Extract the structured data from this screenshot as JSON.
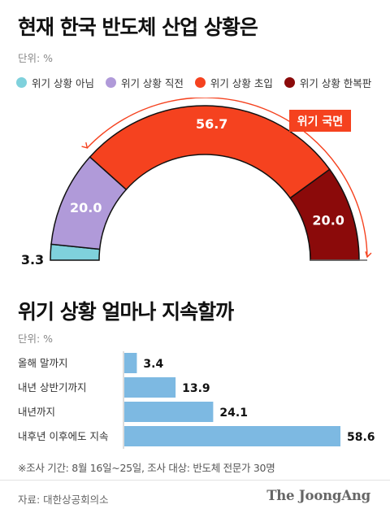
{
  "chart1": {
    "title": "현재 한국 반도체 산업 상황은",
    "unit": "단위: %",
    "legend": [
      {
        "label": "위기 상황 아님",
        "color": "#7fd1dc"
      },
      {
        "label": "위기 상황 직전",
        "color": "#b09ad9"
      },
      {
        "label": "위기 상황 초입",
        "color": "#f5421f"
      },
      {
        "label": "위기 상황 한복판",
        "color": "#8b0a0a"
      }
    ],
    "annotation": "위기 국면",
    "annotation_color": "#f5421f"
  },
  "chart2": {
    "title": "위기 상황 얼마나 지속할까",
    "unit": "단위: %",
    "bar_color": "#7db9e2"
  },
  "chart_data": [
    {
      "type": "pie",
      "variant": "semicircle-gauge",
      "title": "현재 한국 반도체 산업 상황은",
      "unit": "%",
      "slices": [
        {
          "label": "위기 상황 아님",
          "value": 3.3
        },
        {
          "label": "위기 상황 직전",
          "value": 20.0
        },
        {
          "label": "위기 상황 초입",
          "value": 56.7
        },
        {
          "label": "위기 상황 한복판",
          "value": 20.0
        }
      ],
      "value_labels": [
        "3.3",
        "20.0",
        "56.7",
        "20.0"
      ]
    },
    {
      "type": "bar",
      "orientation": "horizontal",
      "title": "위기 상황 얼마나 지속할까",
      "unit": "%",
      "categories": [
        "올해 말까지",
        "내년 상반기까지",
        "내년까지",
        "내후년 이후에도 지속"
      ],
      "values": [
        3.4,
        13.9,
        24.1,
        58.6
      ],
      "value_labels": [
        "3.4",
        "13.9",
        "24.1",
        "58.6"
      ]
    }
  ],
  "footnote": "※조사 기간: 8월 16일~25일, 조사 대상: 반도체 전문가 30명",
  "source": "자료: 대한상공회의소",
  "brand": "The JoongAng"
}
